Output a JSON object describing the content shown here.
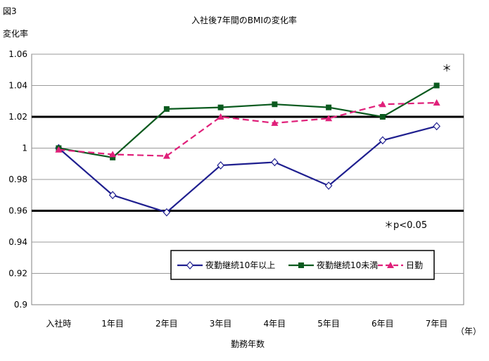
{
  "figure_label": "図3",
  "chart_data": {
    "type": "line",
    "title": "入社後7年間のBMIの変化率",
    "ylabel": "変化率",
    "xlabel": "勤務年数",
    "x_unit": "（年）",
    "categories": [
      "入社時",
      "1年目",
      "2年目",
      "3年目",
      "4年目",
      "5年目",
      "6年目",
      "7年目"
    ],
    "ylim": [
      0.9,
      1.06
    ],
    "yticks": [
      0.9,
      0.92,
      0.94,
      0.96,
      0.98,
      1,
      1.02,
      1.04,
      1.06
    ],
    "ytick_labels": [
      "0.9",
      "0.92",
      "0.94",
      "0.96",
      "0.98",
      "1",
      "1.02",
      "1.04",
      "1.06"
    ],
    "grid": true,
    "thick_reference_lines": [
      0.96,
      1.02
    ],
    "legend_position": "bottom-right",
    "series": [
      {
        "name": "夜勤継続10年以上",
        "color": "#1f1f8f",
        "marker": "diamond",
        "dash": "solid",
        "values": [
          1.0,
          0.97,
          0.959,
          0.989,
          0.991,
          0.976,
          1.005,
          1.014
        ]
      },
      {
        "name": "夜勤継続10未満",
        "color": "#0a5a1e",
        "marker": "square",
        "dash": "solid",
        "values": [
          1.0,
          0.994,
          1.025,
          1.026,
          1.028,
          1.026,
          1.02,
          1.04
        ]
      },
      {
        "name": "日勤",
        "color": "#e0207a",
        "marker": "triangle",
        "dash": "dashed",
        "values": [
          0.999,
          0.996,
          0.995,
          1.02,
          1.016,
          1.019,
          1.028,
          1.029
        ]
      }
    ],
    "annotations": [
      {
        "text": "＊",
        "near": "top-right, above 7年目 of 夜勤継続10未満"
      },
      {
        "text": "＊p<0.05",
        "near": "right, below the 0.96 line"
      }
    ]
  }
}
